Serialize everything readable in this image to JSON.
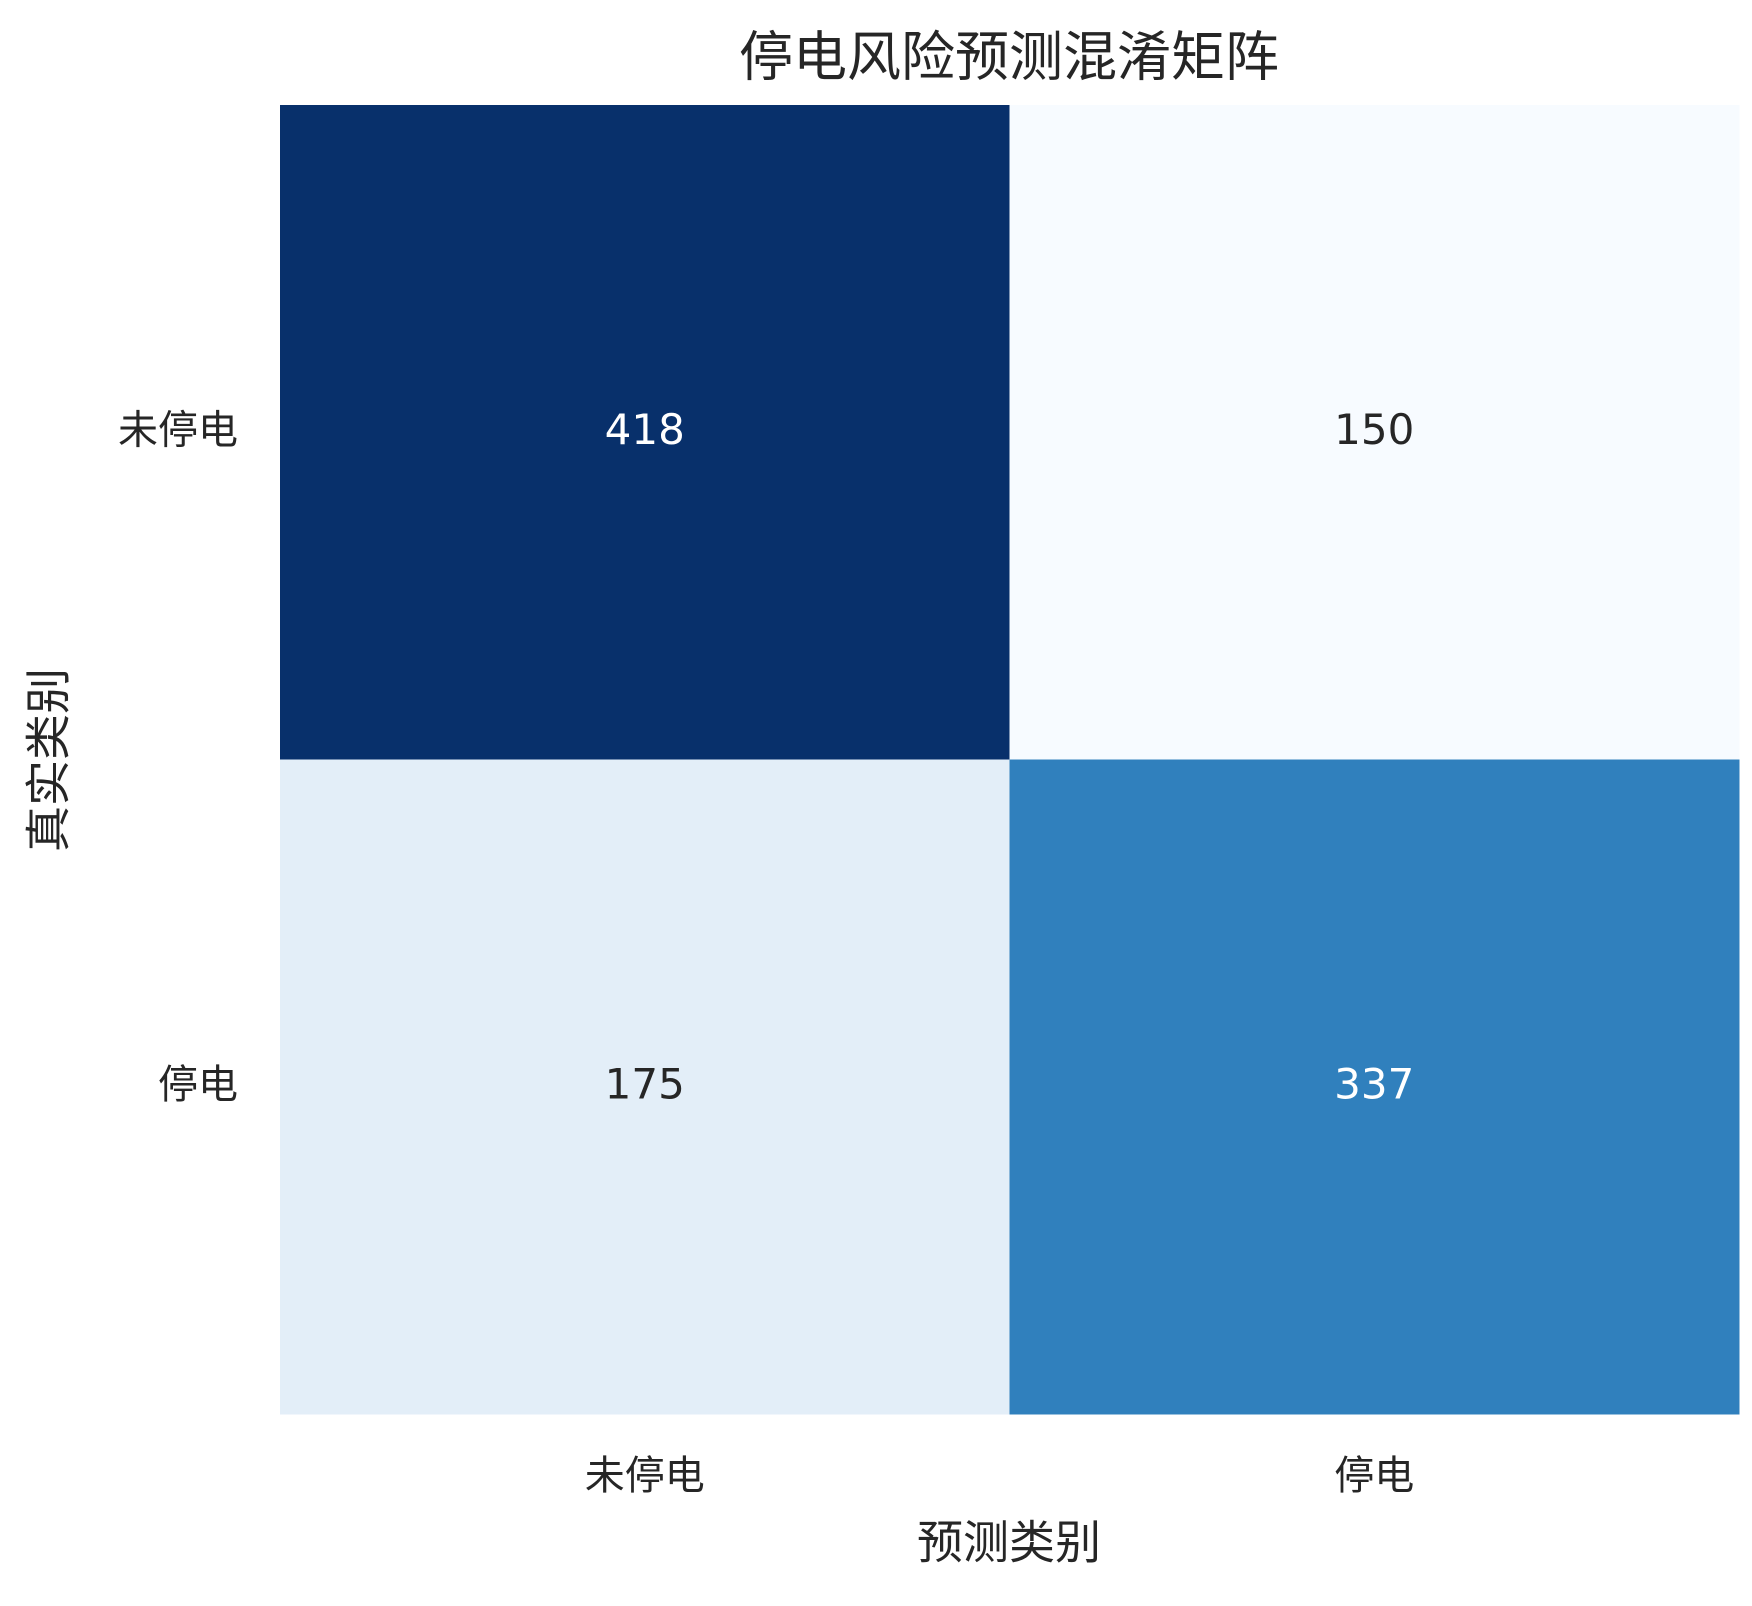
{
  "chart_data": {
    "type": "heatmap",
    "title": "停电风险预测混淆矩阵",
    "x_label": "预测类别",
    "y_label": "真实类别",
    "x_categories": [
      "未停电",
      "停电"
    ],
    "y_categories": [
      "未停电",
      "停电"
    ],
    "values": [
      [
        418,
        150
      ],
      [
        175,
        337
      ]
    ],
    "colors": [
      [
        "#08306b",
        "#f7fbff"
      ],
      [
        "#e3eef8",
        "#3080bd"
      ]
    ]
  }
}
